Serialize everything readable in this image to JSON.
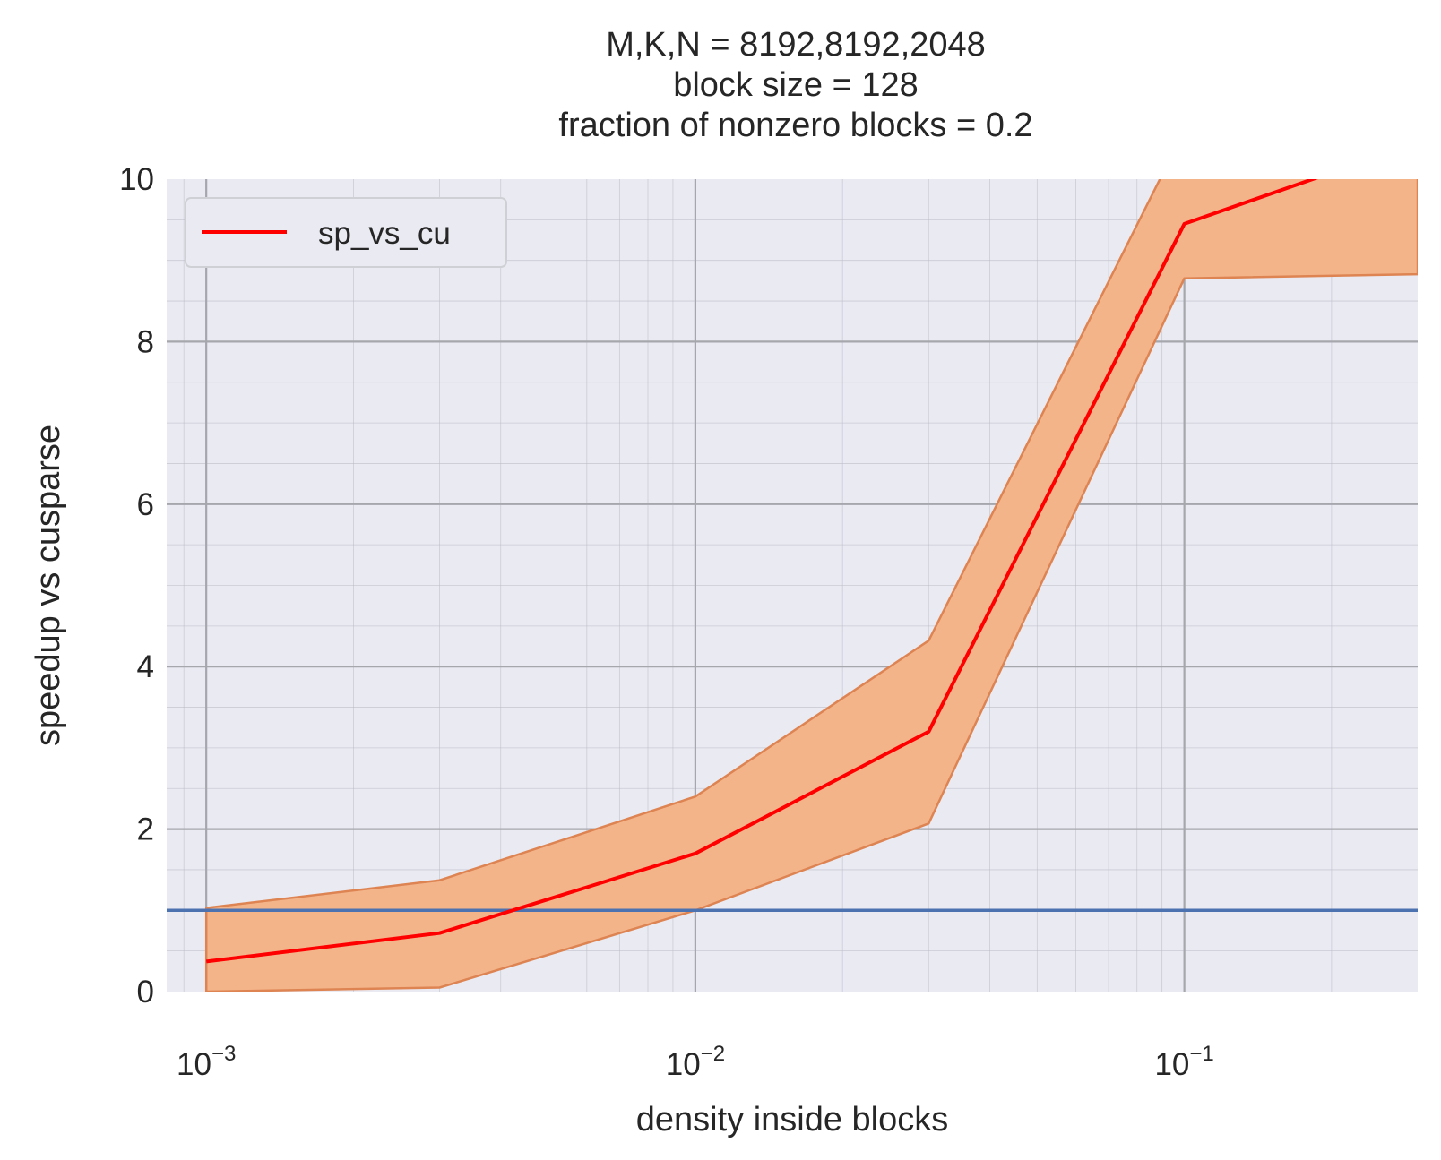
{
  "chart_data": {
    "type": "line",
    "title": [
      "M,K,N = 8192,8192,2048",
      "block size = 128",
      "fraction of nonzero blocks = 0.2"
    ],
    "xlabel": "density inside blocks",
    "ylabel": "speedup vs cusparse",
    "xscale": "log",
    "xlim": [
      0.00083,
      0.3
    ],
    "ylim": [
      0,
      10
    ],
    "xticks": [
      0.001,
      0.01,
      0.1
    ],
    "xtick_labels": [
      {
        "base": "10",
        "exp": "−3"
      },
      {
        "base": "10",
        "exp": "−2"
      },
      {
        "base": "10",
        "exp": "−1"
      }
    ],
    "yticks": [
      0,
      2,
      4,
      6,
      8,
      10
    ],
    "ytick_labels": [
      "0",
      "2",
      "4",
      "6",
      "8",
      "10"
    ],
    "grid": true,
    "minor_grid": true,
    "background": "#EAEAF2",
    "legend": {
      "position": "upper-left",
      "entries": [
        "sp_vs_cu"
      ]
    },
    "series": [
      {
        "name": "sp_vs_cu",
        "color": "#FF0000",
        "x": [
          0.001,
          0.003,
          0.01,
          0.03,
          0.1,
          0.3
        ],
        "y": [
          0.37,
          0.72,
          1.7,
          3.2,
          9.45,
          10.45
        ]
      }
    ],
    "band": {
      "color": "#F4B48A",
      "edge_color": "#DD8452",
      "x": [
        0.001,
        0.003,
        0.01,
        0.03,
        0.1,
        0.3
      ],
      "upper": [
        1.03,
        1.37,
        2.4,
        4.32,
        10.6,
        10.9
      ],
      "lower": [
        0,
        0.05,
        1.0,
        2.07,
        8.78,
        8.83
      ]
    },
    "hline": {
      "y": 1.0,
      "color": "#4C72B0"
    }
  }
}
